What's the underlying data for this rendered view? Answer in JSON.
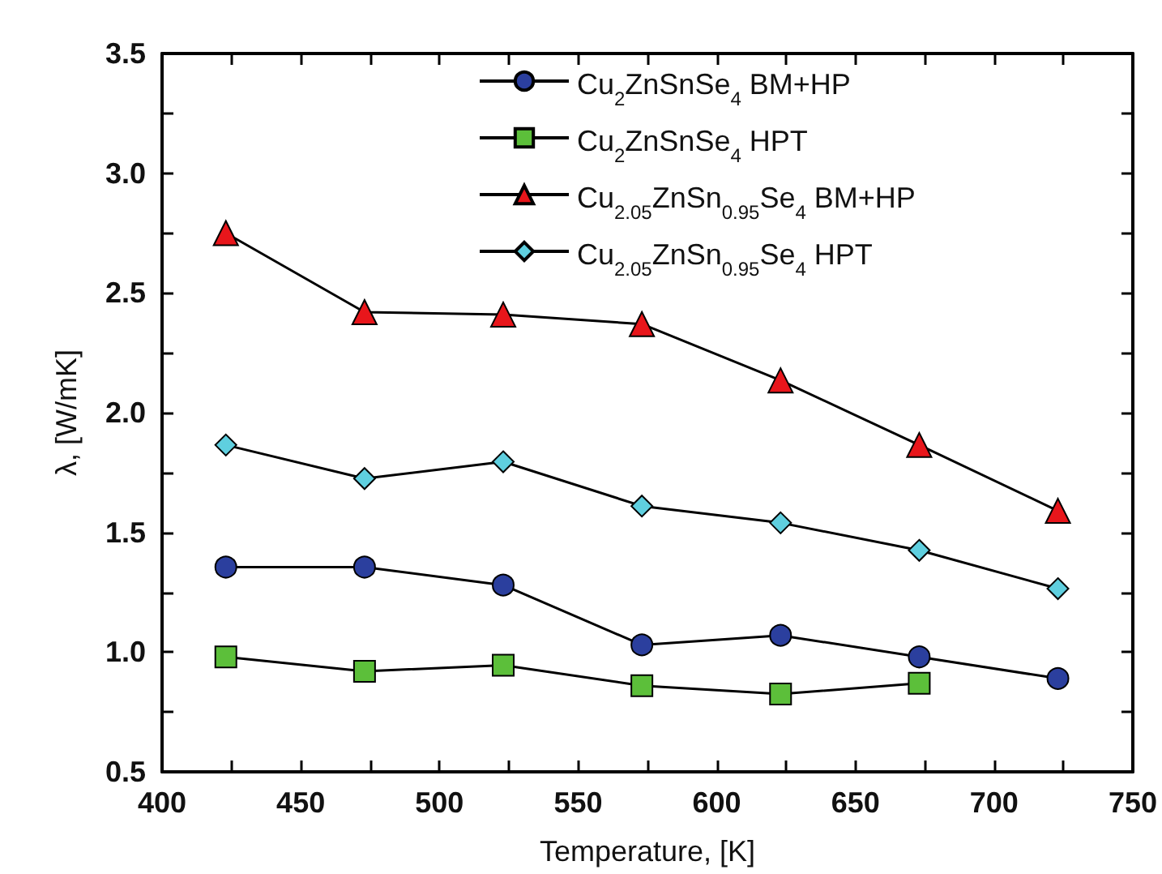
{
  "chart_data": {
    "type": "line",
    "xlabel": "Temperature, [K]",
    "ylabel": "λ, [W/mK]",
    "x": [
      423,
      473,
      523,
      573,
      623,
      673,
      723
    ],
    "xlim": [
      400,
      750
    ],
    "xticks": [
      400,
      450,
      500,
      550,
      600,
      650,
      700,
      750
    ],
    "ylim": [
      0.5,
      3.5
    ],
    "yticks": [
      0.5,
      {
        "value": 1,
        "label": "1.0"
      },
      1.5,
      {
        "value": 2,
        "label": "2.0"
      },
      2.5,
      {
        "value": 3,
        "label": "3.0"
      },
      3.5
    ],
    "legend": "top right",
    "line_style": "solid",
    "series": [
      {
        "name": "Cu$_{2}$ZnSnSe$_{4}$ BM+HP",
        "color": "#2b3f9e",
        "marker": "circle",
        "values": [
          1.355,
          1.355,
          1.28,
          1.03,
          1.07,
          0.98,
          0.89
        ]
      },
      {
        "name": "Cu$_{2}$ZnSnSe$_{4}$ HPT",
        "color": "#5cbf3a",
        "marker": "square",
        "values": [
          0.98,
          0.92,
          0.945,
          0.86,
          0.825,
          0.87,
          null
        ]
      },
      {
        "name": "Cu$_{2.05}$ZnSn$_{0.95}$Se$_{4}$ BM+HP",
        "color": "#e8161b",
        "marker": "triangle",
        "values": [
          2.75,
          2.42,
          2.41,
          2.37,
          2.135,
          1.865,
          1.59
        ]
      },
      {
        "name": "Cu$_{2.05}$ZnSn$_{0.95}$Se$_{4}$ HPT",
        "color": "#5fcfdf",
        "marker": "diamond",
        "values": [
          1.865,
          1.725,
          1.795,
          1.61,
          1.54,
          1.425,
          1.265
        ]
      }
    ]
  }
}
